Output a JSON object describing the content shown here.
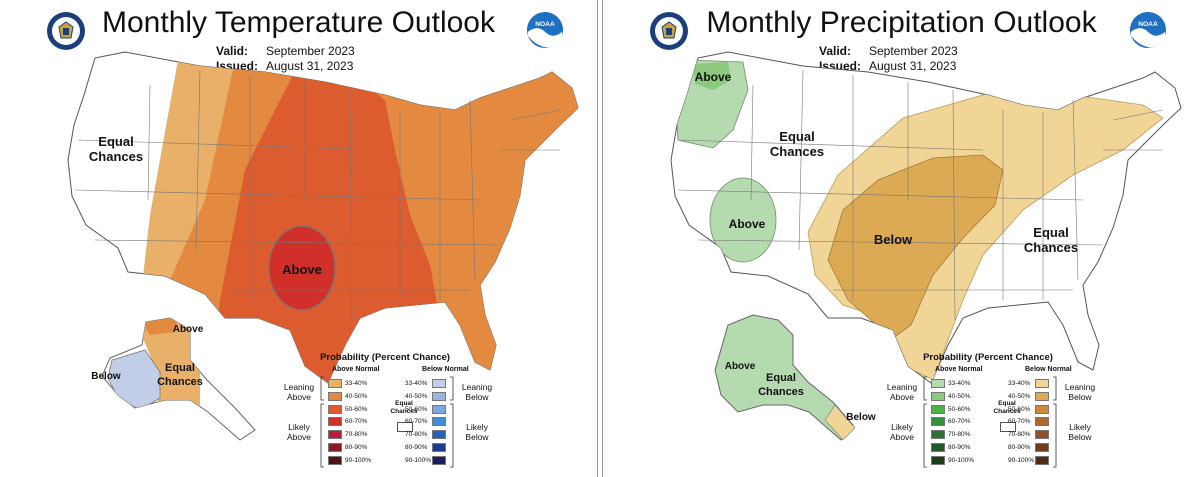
{
  "temperature": {
    "title": "Monthly Temperature Outlook",
    "valid_label": "Valid:",
    "valid_value": "September 2023",
    "issued_label": "Issued:",
    "issued_value": "August 31, 2023",
    "region_labels": {
      "equal_chances_1": "Equal",
      "equal_chances_2": "Chances",
      "above_center": "Above",
      "ak_above": "Above",
      "ak_equal_1": "Equal",
      "ak_equal_2": "Chances",
      "ak_below": "Below"
    },
    "colors": {
      "c33_40": "#e8b068",
      "c40_50": "#e48940",
      "c50_60": "#dc5c2f",
      "c60_70": "#d1302a",
      "c70_80": "#b91f3c",
      "c80_90": "#8a1c2a",
      "c90_100": "#4a1414",
      "below_33_40": "#c2cde8"
    }
  },
  "precipitation": {
    "title": "Monthly Precipitation Outlook",
    "valid_label": "Valid:",
    "valid_value": "September 2023",
    "issued_label": "Issued:",
    "issued_value": "August 31, 2023",
    "region_labels": {
      "above_nw": "Above",
      "equal_1": "Equal",
      "equal_2": "Chances",
      "above_w": "Above",
      "below_center": "Below",
      "equal_e_1": "Equal",
      "equal_e_2": "Chances",
      "ak_above": "Above",
      "ak_equal_1": "Equal",
      "ak_equal_2": "Chances",
      "ak_below": "Below"
    },
    "colors": {
      "g33_40": "#b5dab0",
      "g40_50": "#8cc97f",
      "g50_60": "#4fb04a",
      "g60_70": "#3a8f3e",
      "g70_80": "#2d7232",
      "g80_90": "#225a27",
      "g90_100": "#1a3d14",
      "b33_40": "#f1d596",
      "b40_50": "#dcaa54",
      "b50_60": "#c98a3a",
      "b60_70": "#ad6a2f",
      "b70_80": "#8e5226",
      "b80_90": "#6e3e1c",
      "b90_100": "#4f2c17"
    }
  },
  "legend_temp": {
    "title": "Probability (Percent Chance)",
    "above_header": "Above Normal",
    "below_header": "Below Normal",
    "leaning_above_1": "Leaning",
    "leaning_above_2": "Above",
    "likely_above_1": "Likely",
    "likely_above_2": "Above",
    "leaning_below_1": "Leaning",
    "leaning_below_2": "Below",
    "likely_below_1": "Likely",
    "likely_below_2": "Below",
    "equal_1": "Equal",
    "equal_2": "Chances",
    "bins": [
      "33-40%",
      "40-50%",
      "50-60%",
      "60-70%",
      "70-80%",
      "80-90%",
      "90-100%"
    ],
    "above_colors": [
      "#e8b068",
      "#e48940",
      "#dc5c2f",
      "#d1302a",
      "#b91f3c",
      "#8a1c2a",
      "#4a1414"
    ],
    "below_colors": [
      "#c2cde8",
      "#9ab6e0",
      "#7fa8de",
      "#3f8fd6",
      "#2363b7",
      "#1c3a8f",
      "#1b1e60"
    ]
  },
  "legend_precip": {
    "title": "Probability (Percent Chance)",
    "above_header": "Above Normal",
    "below_header": "Below Normal",
    "leaning_above_1": "Leaning",
    "leaning_above_2": "Above",
    "likely_above_1": "Likely",
    "likely_above_2": "Above",
    "leaning_below_1": "Leaning",
    "leaning_below_2": "Below",
    "likely_below_1": "Likely",
    "likely_below_2": "Below",
    "equal_1": "Equal",
    "equal_2": "Chances",
    "bins": [
      "33-40%",
      "40-50%",
      "50-60%",
      "60-70%",
      "70-80%",
      "80-90%",
      "90-100%"
    ],
    "above_colors": [
      "#b5dab0",
      "#8cc97f",
      "#4fb04a",
      "#3a8f3e",
      "#2d7232",
      "#225a27",
      "#1a3d14"
    ],
    "below_colors": [
      "#f1d596",
      "#dcaa54",
      "#c98a3a",
      "#ad6a2f",
      "#8e5226",
      "#6e3e1c",
      "#4f2c17"
    ]
  }
}
